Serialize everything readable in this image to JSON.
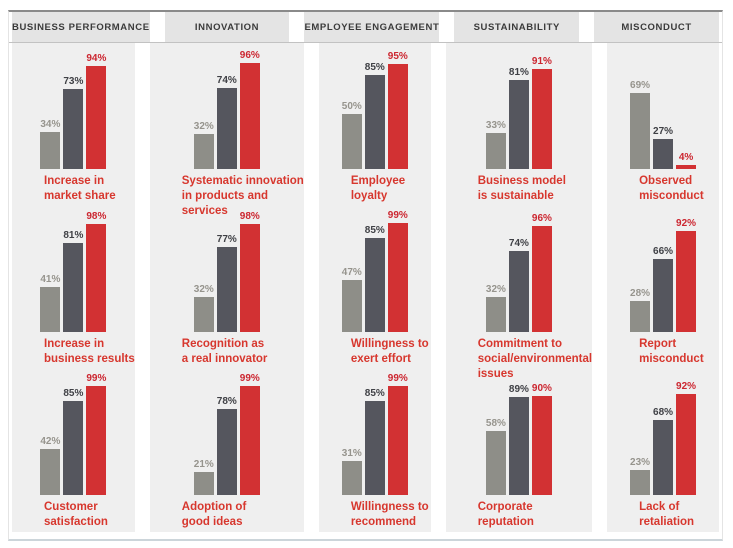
{
  "chart_data": {
    "type": "bar",
    "unit": "%",
    "bar_colors": [
      "#8E8E88",
      "#55565E",
      "#D23133"
    ],
    "value_label_colors": [
      "#96948D",
      "#3F4045",
      "#CC2630"
    ],
    "category_label_color": "#D7372E",
    "header_text_color": "#3B3B3B",
    "column_background": "#EFEFEF",
    "header_background": "#E4E4E4",
    "ylim": [
      0,
      100
    ],
    "groups": [
      {
        "header": "BUSINESS PERFORMANCE",
        "charts": [
          {
            "label": "Increase in\nmarket share",
            "values": [
              34,
              73,
              94
            ]
          },
          {
            "label": "Increase in\nbusiness results",
            "values": [
              41,
              81,
              98
            ]
          },
          {
            "label": "Customer\nsatisfaction",
            "values": [
              42,
              85,
              99
            ]
          }
        ]
      },
      {
        "header": "INNOVATION",
        "charts": [
          {
            "label": "Systematic innovation\nin products and\nservices",
            "values": [
              32,
              74,
              96
            ]
          },
          {
            "label": "Recognition as\na real innovator",
            "values": [
              32,
              77,
              98
            ]
          },
          {
            "label": "Adoption of\ngood ideas",
            "values": [
              21,
              78,
              99
            ]
          }
        ]
      },
      {
        "header": "EMPLOYEE ENGAGEMENT",
        "charts": [
          {
            "label": "Employee\nloyalty",
            "values": [
              50,
              85,
              95
            ]
          },
          {
            "label": "Willingness to\nexert effort",
            "values": [
              47,
              85,
              99
            ]
          },
          {
            "label": "Willingness to\nrecommend",
            "values": [
              31,
              85,
              99
            ]
          }
        ]
      },
      {
        "header": "SUSTAINABILITY",
        "charts": [
          {
            "label": "Business model\nis sustainable",
            "values": [
              33,
              81,
              91
            ]
          },
          {
            "label": "Commitment to\nsocial/environmental\nissues",
            "values": [
              32,
              74,
              96
            ]
          },
          {
            "label": "Corporate\nreputation",
            "values": [
              58,
              89,
              90
            ]
          }
        ]
      },
      {
        "header": "MISCONDUCT",
        "charts": [
          {
            "label": "Observed\nmisconduct",
            "values": [
              69,
              27,
              4
            ]
          },
          {
            "label": "Report\nmisconduct",
            "values": [
              28,
              66,
              92
            ]
          },
          {
            "label": "Lack of\nretaliation",
            "values": [
              23,
              68,
              92
            ]
          }
        ]
      }
    ]
  }
}
